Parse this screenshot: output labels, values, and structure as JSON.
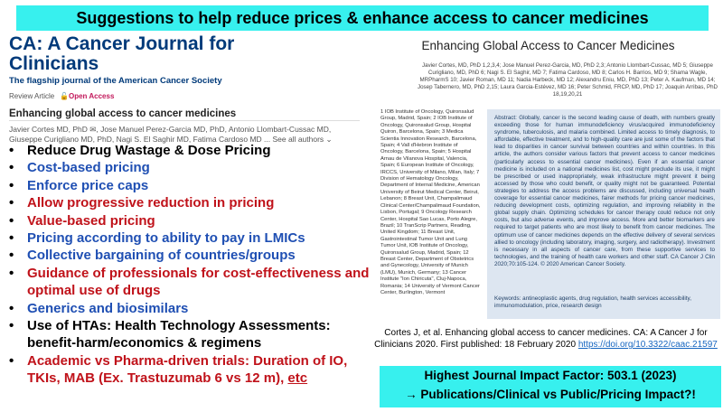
{
  "title": "Suggestions to help reduce prices & enhance access to cancer medicines",
  "journal_page": {
    "journal_name": "CA: A Cancer Journal for Clinicians",
    "subtitle": "The flagship journal of the American Cancer Society",
    "review_label": "Review Article",
    "open_access": "Open Access",
    "article_title": "Enhancing global access to cancer medicines",
    "authors_line1": "Javier Cortes MD, PhD ✉, Jose Manuel Perez-Garcia MD, PhD, Antonio Llombart-Cussac MD,",
    "authors_line2": "Giuseppe Curigliano MD, PhD, Nagi S. El Saghir MD, Fatima Cardoso MD ... See all authors ⌄"
  },
  "bullets": [
    {
      "text": "Reduce Drug Wastage & Dose Pricing",
      "color": "#000000"
    },
    {
      "text": "Cost-based pricing",
      "color": "#1f4fb3"
    },
    {
      "text": "Enforce price caps",
      "color": "#1f4fb3"
    },
    {
      "text": "Allow progressive reduction in pricing",
      "color": "#c0121a"
    },
    {
      "text": "Value-based pricing",
      "color": "#c0121a"
    },
    {
      "text": "Pricing according to ability to pay in LMICs",
      "color": "#1f4fb3"
    },
    {
      "text": "Collective bargaining of countries/groups",
      "color": "#1f4fb3"
    },
    {
      "text": "Guidance of professionals for cost-effectiveness and optimal use of drugs",
      "color": "#c0121a"
    },
    {
      "text": "Generics and biosimilars",
      "color": "#1f4fb3"
    },
    {
      "text": "Use of HTAs: Health Technology Assessments: benefit-harm/economics & regimens",
      "color": "#000000"
    },
    {
      "text": "Academic vs Pharma-driven trials: Duration of IO, TKIs, MAB (Ex. Trastuzumab 6 vs 12 m), etc",
      "color": "#c0121a"
    }
  ],
  "paper": {
    "title": "Enhancing Global Access to Cancer Medicines",
    "authors": "Javier Cortes, MD, PhD 1,2,3,4; Jose Manuel Perez-Garcia, MD, PhD 2,3; Antonio Llombart-Cussac, MD 5; Giuseppe Curigliano, MD, PhD 6; Nagi S. El Saghir, MD 7; Fatima Cardoso, MD 8; Carlos H. Barrios, MD 9; Shama Wagle, MRPharmS 10; Javier Roman, MD 11; Nadia Harbeck, MD 12; Alexandru Eniu, MD, PhD 13; Peter A. Kaufman, MD 14; Josep Tabernero, MD, PhD 2,15; Laura Garcia-Estévez, MD 16; Peter Schmid, FRCP, MD, PhD 17; Joaquin Arribas, PhD 18,19,20,21",
    "affiliations": "1 IOB Institute of Oncology, Quironsalud Group, Madrid, Spain; 2 IOB Institute of Oncology, Quironsalud Group, Hospital Quiron, Barcelona, Spain; 3 Medica Scientia Innovation Research, Barcelona, Spain; 4 Vall d'Hebron Institute of Oncology, Barcelona, Spain; 5 Hospital Arnau de Vilanova Hospital, Valencia, Spain; 6 European Institute of Oncology, IRCCS, University of Milano, Milan, Italy; 7 Division of Hematology Oncology, Department of Internal Medicine, American University of Beirut Medical Center, Beirut, Lebanon; 8 Breast Unit, Champalimaud Clinical Center/Champalimaud Foundation, Lisbon, Portugal; 9 Oncology Research Center, Hospital Sao Lucas, Porto Alegre, Brazil; 10 TranScrip Partners, Reading, United Kingdom; 11 Breast Unit, Gastrointestinal Tumor Unit and Lung Tumor Unit, IOB Institute of Oncology, Quironsalud Group, Madrid, Spain; 12 Breast Center, Department of Obstetrics and Gynecology, University of Munich (LMU), Munich, Germany; 13 Cancer Institute \"Ion Chiricuta\", Cluj-Napoca, Romania; 14 University of Vermont Cancer Center, Burlington, Vermont",
    "abstract": "Abstract: Globally, cancer is the second leading cause of death, with numbers greatly exceeding those for human immunodeficiency virus/acquired immunodeficiency syndrome, tuberculosis, and malaria combined. Limited access to timely diagnosis, to affordable, effective treatment, and to high-quality care are just some of the factors that lead to disparities in cancer survival between countries and within countries. In this article, the authors consider various factors that prevent access to cancer medicines (particularly access to essential cancer medicines). Even if an essential cancer medicine is included on a national medicines list, cost might preclude its use, it might be prescribed or used inappropriately, weak infrastructure might prevent it being accessed by those who could benefit, or quality might not be guaranteed. Potential strategies to address the access problems are discussed, including universal health coverage for essential cancer medicines, fairer methods for pricing cancer medicines, reducing development costs, optimizing regulation, and improving reliability in the global supply chain. Optimizing schedules for cancer therapy could reduce not only costs, but also adverse events, and improve access. More and better biomarkers are required to target patients who are most likely to benefit from cancer medicines. The optimum use of cancer medicines depends on the effective delivery of several services allied to oncology (including laboratory, imaging, surgery, and radiotherapy). Investment is necessary in all aspects of cancer care, from these supportive services to technologies, and the training of health care workers and other staff. CA Cancer J Clin 2020;70:105-124. © 2020 American Cancer Society.",
    "keywords": "Keywords: antineoplastic agents, drug regulation, health services accessibility, immunomodulation, price, research design"
  },
  "citation": {
    "text": "Cortes J, et al. Enhancing global access to cancer medicines. CA: A Cancer J for Clinicians 2020. First published: 18 February 2020",
    "doi": "https://doi.org/10.3322/caac.21597"
  },
  "impact": {
    "line1": "Highest Journal Impact Factor: 503.1 (2023)",
    "line2": "→ Publications/Clinical vs Public/Pricing Impact?!"
  },
  "colors": {
    "highlight": "#37f0ee",
    "blue": "#1f4fb3",
    "red": "#c0121a",
    "journal_blue": "#003a7a"
  }
}
